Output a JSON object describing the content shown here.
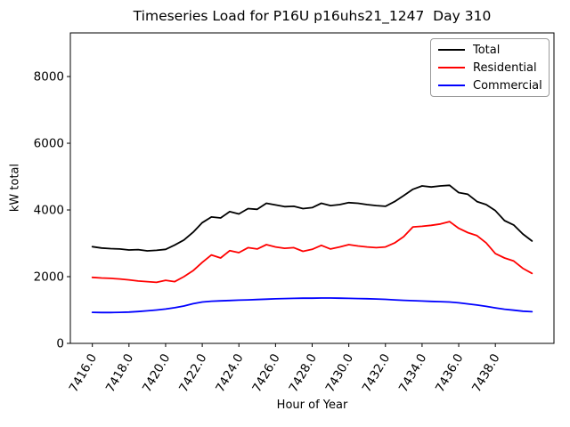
{
  "chart_data": {
    "type": "line",
    "title": "Timeseries Load for P16U p16uhs21_1247  Day 310",
    "xlabel": "Hour of Year",
    "ylabel": "kW total",
    "xlim": [
      7414.8,
      7441.2
    ],
    "ylim": [
      0,
      9308
    ],
    "grid": false,
    "legend_position": "upper right",
    "xticks": {
      "values": [
        7416,
        7418,
        7420,
        7422,
        7424,
        7426,
        7428,
        7430,
        7432,
        7434,
        7436,
        7438
      ],
      "labels": [
        "7416.0",
        "7418.0",
        "7420.0",
        "7422.0",
        "7424.0",
        "7426.0",
        "7428.0",
        "7430.0",
        "7432.0",
        "7434.0",
        "7436.0",
        "7438.0"
      ],
      "rotation_deg": 60
    },
    "yticks": {
      "values": [
        0,
        2000,
        4000,
        6000,
        8000
      ],
      "labels": [
        "0",
        "2000",
        "4000",
        "6000",
        "8000"
      ]
    },
    "x": [
      7416.0,
      7416.5,
      7417.0,
      7417.5,
      7418.0,
      7418.5,
      7419.0,
      7419.5,
      7420.0,
      7420.5,
      7421.0,
      7421.5,
      7422.0,
      7422.5,
      7423.0,
      7423.5,
      7424.0,
      7424.5,
      7425.0,
      7425.5,
      7426.0,
      7426.5,
      7427.0,
      7427.5,
      7428.0,
      7428.5,
      7429.0,
      7429.5,
      7430.0,
      7430.5,
      7431.0,
      7431.5,
      7432.0,
      7432.5,
      7433.0,
      7433.5,
      7434.0,
      7434.5,
      7435.0,
      7435.5,
      7436.0,
      7436.5,
      7437.0,
      7437.5,
      7438.0,
      7438.5,
      7439.0,
      7439.5,
      7440.0
    ],
    "series": [
      {
        "name": "Total",
        "color": "#000000",
        "values": [
          2900,
          2860,
          2840,
          2830,
          2800,
          2810,
          2775,
          2790,
          2820,
          2950,
          3100,
          3330,
          3620,
          3790,
          3760,
          3950,
          3880,
          4040,
          4020,
          4200,
          4150,
          4100,
          4110,
          4040,
          4070,
          4200,
          4130,
          4160,
          4220,
          4200,
          4160,
          4130,
          4110,
          4250,
          4430,
          4620,
          4720,
          4690,
          4720,
          4740,
          4520,
          4470,
          4250,
          4160,
          3980,
          3680,
          3550,
          3280,
          3070
        ]
      },
      {
        "name": "Residential",
        "color": "#ff0000",
        "values": [
          1980,
          1960,
          1950,
          1930,
          1905,
          1870,
          1850,
          1830,
          1890,
          1850,
          2000,
          2180,
          2430,
          2650,
          2560,
          2780,
          2720,
          2870,
          2830,
          2960,
          2890,
          2850,
          2870,
          2760,
          2820,
          2940,
          2830,
          2890,
          2960,
          2920,
          2890,
          2870,
          2890,
          3010,
          3200,
          3490,
          3510,
          3540,
          3580,
          3650,
          3450,
          3320,
          3230,
          3010,
          2690,
          2560,
          2470,
          2250,
          2100
        ]
      },
      {
        "name": "Commercial",
        "color": "#0000ff",
        "values": [
          930,
          925,
          925,
          930,
          940,
          955,
          975,
          1000,
          1030,
          1070,
          1120,
          1190,
          1240,
          1265,
          1275,
          1285,
          1295,
          1305,
          1315,
          1325,
          1335,
          1345,
          1350,
          1355,
          1355,
          1360,
          1360,
          1355,
          1350,
          1345,
          1340,
          1330,
          1320,
          1305,
          1290,
          1280,
          1270,
          1260,
          1250,
          1240,
          1215,
          1185,
          1150,
          1110,
          1065,
          1025,
          995,
          965,
          950
        ]
      }
    ]
  }
}
